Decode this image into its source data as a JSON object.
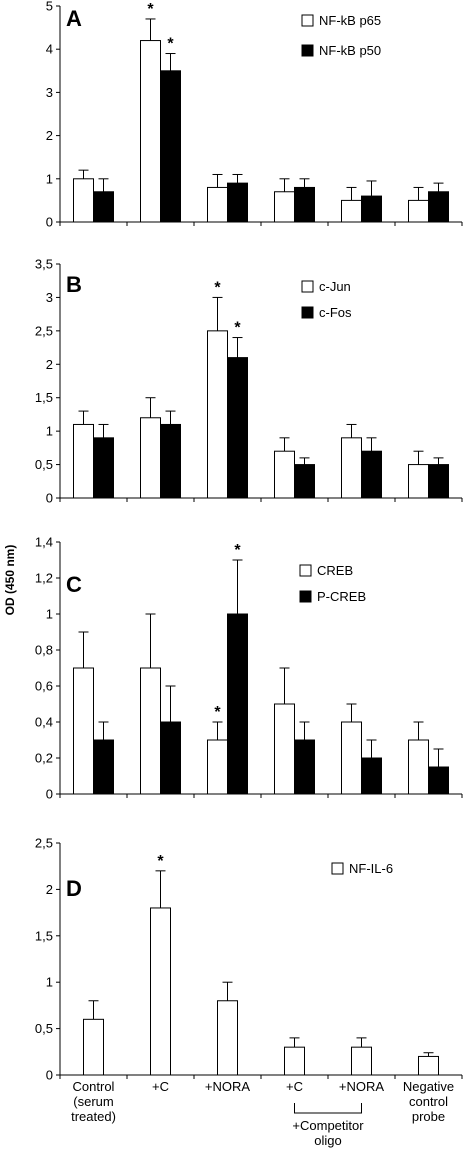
{
  "figure": {
    "y_axis_label": "OD (450 nm)",
    "categories": [
      [
        "Control",
        "(serum",
        "treated)"
      ],
      [
        "+C"
      ],
      [
        "+NORA"
      ],
      [
        "+C"
      ],
      [
        "+NORA"
      ],
      [
        "Negative",
        "control",
        "probe"
      ]
    ],
    "group_label": [
      "+Competitor",
      "oligo"
    ]
  },
  "chart_data": [
    {
      "type": "bar",
      "panel": "A",
      "ylim": [
        0,
        5
      ],
      "yticks": [
        "0",
        "1",
        "2",
        "3",
        "4",
        "5"
      ],
      "ytick_values": [
        0,
        1,
        2,
        3,
        4,
        5
      ],
      "series": [
        {
          "name": "NF-kB p65",
          "color": "#ffffff",
          "values": [
            1.0,
            4.2,
            0.8,
            0.7,
            0.5,
            0.5
          ],
          "errors": [
            0.2,
            0.5,
            0.3,
            0.3,
            0.3,
            0.3
          ]
        },
        {
          "name": "NF-kB p50",
          "color": "#000000",
          "values": [
            0.7,
            3.5,
            0.9,
            0.8,
            0.6,
            0.7
          ],
          "errors": [
            0.3,
            0.4,
            0.2,
            0.2,
            0.35,
            0.2
          ]
        }
      ],
      "significance": [
        {
          "category": 1,
          "series": 0,
          "label": "*"
        },
        {
          "category": 1,
          "series": 1,
          "label": "*"
        }
      ]
    },
    {
      "type": "bar",
      "panel": "B",
      "ylim": [
        0,
        3.5
      ],
      "yticks": [
        "0",
        "0,5",
        "1",
        "1,5",
        "2",
        "2,5",
        "3",
        "3,5"
      ],
      "ytick_values": [
        0,
        0.5,
        1,
        1.5,
        2,
        2.5,
        3,
        3.5
      ],
      "series": [
        {
          "name": "c-Jun",
          "color": "#ffffff",
          "values": [
            1.1,
            1.2,
            2.5,
            0.7,
            0.9,
            0.5
          ],
          "errors": [
            0.2,
            0.3,
            0.5,
            0.2,
            0.2,
            0.2
          ]
        },
        {
          "name": "c-Fos",
          "color": "#000000",
          "values": [
            0.9,
            1.1,
            2.1,
            0.5,
            0.7,
            0.5
          ],
          "errors": [
            0.2,
            0.2,
            0.3,
            0.1,
            0.2,
            0.1
          ]
        }
      ],
      "significance": [
        {
          "category": 2,
          "series": 0,
          "label": "*"
        },
        {
          "category": 2,
          "series": 1,
          "label": "*"
        }
      ]
    },
    {
      "type": "bar",
      "panel": "C",
      "ylim": [
        0,
        1.4
      ],
      "yticks": [
        "0",
        "0,2",
        "0,4",
        "0,6",
        "0,8",
        "1",
        "1,2",
        "1,4"
      ],
      "ytick_values": [
        0,
        0.2,
        0.4,
        0.6,
        0.8,
        1,
        1.2,
        1.4
      ],
      "series": [
        {
          "name": "CREB",
          "color": "#ffffff",
          "values": [
            0.7,
            0.7,
            0.3,
            0.5,
            0.4,
            0.3
          ],
          "errors": [
            0.2,
            0.3,
            0.1,
            0.2,
            0.1,
            0.1
          ]
        },
        {
          "name": "P-CREB",
          "color": "#000000",
          "values": [
            0.3,
            0.4,
            1.0,
            0.3,
            0.2,
            0.15
          ],
          "errors": [
            0.1,
            0.2,
            0.3,
            0.1,
            0.1,
            0.1
          ]
        }
      ],
      "significance": [
        {
          "category": 2,
          "series": 0,
          "label": "*"
        },
        {
          "category": 2,
          "series": 1,
          "label": "*"
        }
      ]
    },
    {
      "type": "bar",
      "panel": "D",
      "ylim": [
        0,
        2.5
      ],
      "yticks": [
        "0",
        "0,5",
        "1",
        "1,5",
        "2",
        "2,5"
      ],
      "ytick_values": [
        0,
        0.5,
        1,
        1.5,
        2,
        2.5
      ],
      "series": [
        {
          "name": "NF-IL-6",
          "color": "#ffffff",
          "values": [
            0.6,
            1.8,
            0.8,
            0.3,
            0.3,
            0.2
          ],
          "errors": [
            0.2,
            0.4,
            0.2,
            0.1,
            0.1,
            0.04
          ]
        }
      ],
      "significance": [
        {
          "category": 1,
          "series": 0,
          "label": "*"
        }
      ]
    }
  ]
}
